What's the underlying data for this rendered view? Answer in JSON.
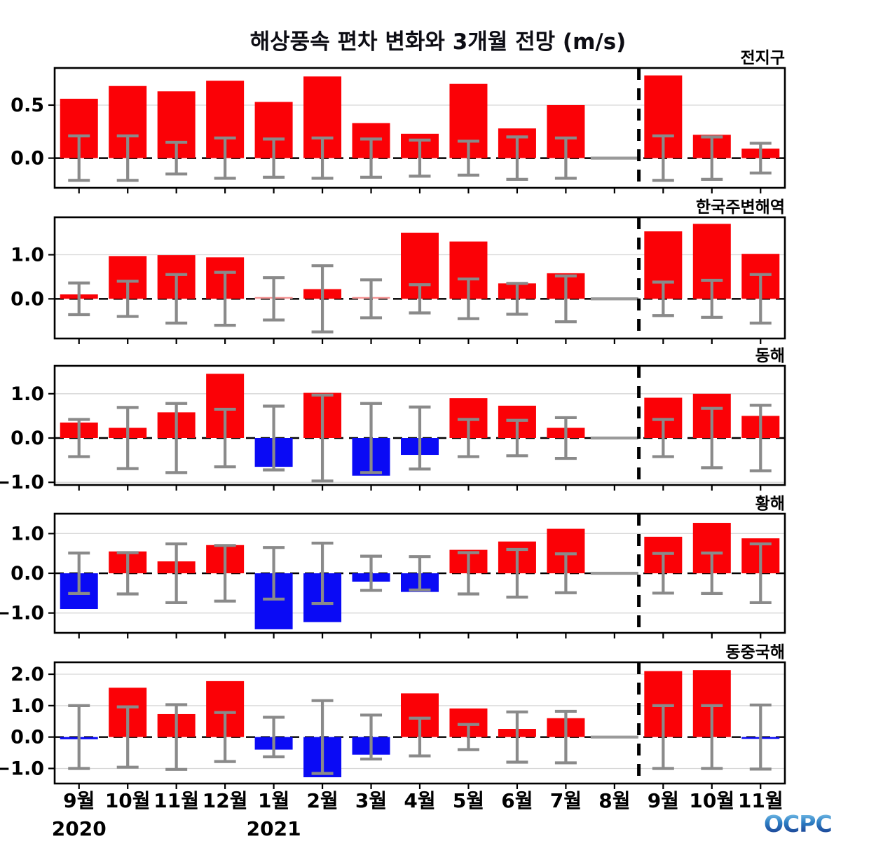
{
  "title": "해상풍속 편차 변화와 3개월 전망 (m/s)",
  "logo_text": "OCPC",
  "colors": {
    "positive": "#fb0106",
    "negative": "#0a0af5",
    "near_zero_positive": "#f59a9a",
    "error_bar": "#8a8a8a",
    "analysis_month_line": "#9a9a9a",
    "zero_line": "#000000",
    "grid_line": "#d6d6d6",
    "frame": "#000000",
    "logo_gradient_top": "#8ed2f2",
    "logo_gradient_mid": "#2e7fc4",
    "logo_gradient_bottom": "#152d84"
  },
  "x_axis": {
    "months": [
      "9월",
      "10월",
      "11월",
      "12월",
      "1월",
      "2월",
      "3월",
      "4월",
      "5월",
      "6월",
      "7월",
      "8월",
      "9월",
      "10월",
      "11월"
    ],
    "years": [
      {
        "label": "2020",
        "month_index": 0
      },
      {
        "label": "2021",
        "month_index": 4
      }
    ]
  },
  "forecast": {
    "divider_after_index": 11
  },
  "chart_data": [
    {
      "type": "bar",
      "title": "전지구",
      "categories": [
        "9월",
        "10월",
        "11월",
        "12월",
        "1월",
        "2월",
        "3월",
        "4월",
        "5월",
        "6월",
        "7월",
        "8월",
        "9월",
        "10월",
        "11월"
      ],
      "values": [
        0.56,
        0.68,
        0.63,
        0.73,
        0.53,
        0.77,
        0.33,
        0.23,
        0.7,
        0.28,
        0.5,
        0.0,
        0.78,
        0.22,
        0.09
      ],
      "error_margins": [
        0.21,
        0.21,
        0.15,
        0.19,
        0.18,
        0.19,
        0.18,
        0.17,
        0.16,
        0.2,
        0.19,
        0.0,
        0.21,
        0.2,
        0.14
      ],
      "yticks": [
        0.0,
        0.5
      ],
      "ylim": [
        -0.28,
        0.85
      ],
      "grid": true,
      "legend": "none"
    },
    {
      "type": "bar",
      "title": "한국주변해역",
      "categories": [
        "9월",
        "10월",
        "11월",
        "12월",
        "1월",
        "2월",
        "3월",
        "4월",
        "5월",
        "6월",
        "7월",
        "8월",
        "9월",
        "10월",
        "11월"
      ],
      "values": [
        0.1,
        0.97,
        0.99,
        0.94,
        0.02,
        0.22,
        0.02,
        1.5,
        1.3,
        0.35,
        0.58,
        0.0,
        1.53,
        1.7,
        1.02
      ],
      "error_margins": [
        0.36,
        0.4,
        0.55,
        0.6,
        0.48,
        0.75,
        0.43,
        0.32,
        0.45,
        0.35,
        0.52,
        0.0,
        0.38,
        0.42,
        0.55
      ],
      "yticks": [
        0.0,
        1.0
      ],
      "ylim": [
        -0.9,
        1.85
      ],
      "grid": true,
      "legend": "none"
    },
    {
      "type": "bar",
      "title": "동해",
      "categories": [
        "9월",
        "10월",
        "11월",
        "12월",
        "1월",
        "2월",
        "3월",
        "4월",
        "5월",
        "6월",
        "7월",
        "8월",
        "9월",
        "10월",
        "11월"
      ],
      "values": [
        0.35,
        0.23,
        0.58,
        1.45,
        -0.65,
        1.02,
        -0.85,
        -0.38,
        0.9,
        0.73,
        0.23,
        0.0,
        0.91,
        1.0,
        0.5
      ],
      "error_margins": [
        0.42,
        0.69,
        0.78,
        0.65,
        0.72,
        0.97,
        0.78,
        0.7,
        0.42,
        0.4,
        0.46,
        0.0,
        0.42,
        0.67,
        0.74
      ],
      "yticks": [
        -1.0,
        0.0,
        1.0
      ],
      "ylim": [
        -1.06,
        1.63
      ],
      "grid": true,
      "legend": "none"
    },
    {
      "type": "bar",
      "title": "황해",
      "categories": [
        "9월",
        "10월",
        "11월",
        "12월",
        "1월",
        "2월",
        "3월",
        "4월",
        "5월",
        "6월",
        "7월",
        "8월",
        "9월",
        "10월",
        "11월"
      ],
      "values": [
        -0.9,
        0.55,
        0.3,
        0.71,
        -1.41,
        -1.23,
        -0.21,
        -0.47,
        0.59,
        0.8,
        1.12,
        0.0,
        0.92,
        1.27,
        0.88
      ],
      "error_margins": [
        0.51,
        0.52,
        0.74,
        0.7,
        0.65,
        0.76,
        0.43,
        0.42,
        0.52,
        0.6,
        0.49,
        0.0,
        0.5,
        0.51,
        0.74
      ],
      "yticks": [
        -1.0,
        0.0,
        1.0
      ],
      "ylim": [
        -1.5,
        1.5
      ],
      "grid": true,
      "legend": "none"
    },
    {
      "type": "bar",
      "title": "동중국해",
      "categories": [
        "9월",
        "10월",
        "11월",
        "12월",
        "1월",
        "2월",
        "3월",
        "4월",
        "5월",
        "6월",
        "7월",
        "8월",
        "9월",
        "10월",
        "11월"
      ],
      "values": [
        -0.07,
        1.57,
        0.73,
        1.78,
        -0.4,
        -1.28,
        -0.56,
        1.39,
        0.91,
        0.26,
        0.6,
        0.0,
        2.1,
        2.13,
        -0.04
      ],
      "error_margins": [
        1.0,
        0.96,
        1.03,
        0.78,
        0.63,
        1.16,
        0.7,
        0.6,
        0.4,
        0.8,
        0.82,
        0.0,
        1.0,
        1.0,
        1.02
      ],
      "yticks": [
        -1.0,
        0.0,
        1.0,
        2.0
      ],
      "ylim": [
        -1.48,
        2.38
      ],
      "grid": true,
      "legend": "none"
    }
  ]
}
